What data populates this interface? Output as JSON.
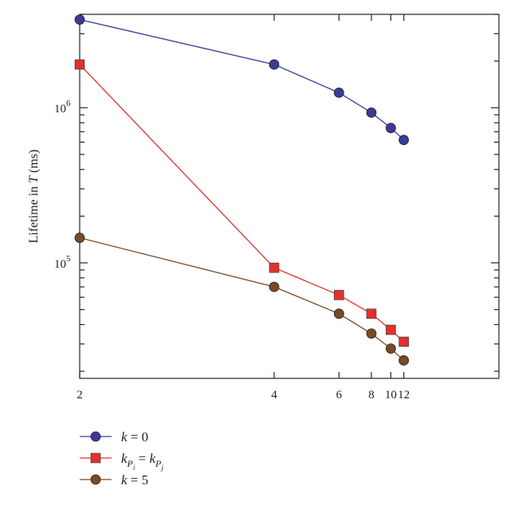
{
  "chart_data": {
    "type": "line",
    "title": "",
    "xlabel": "",
    "ylabel": "Lifetime in T (ms)",
    "ylabel_parts": {
      "text": "Lifetime in ",
      "var": "T",
      "unit": " (ms)"
    },
    "x_scale": "reciprocal",
    "y_scale": "log",
    "xlim": [
      2,
      12
    ],
    "ylim": [
      18000,
      4000000
    ],
    "x_ticks": [
      2,
      4,
      6,
      8,
      10,
      12
    ],
    "x_tick_labels": [
      "2",
      "4",
      "6",
      "8",
      "10",
      "12"
    ],
    "y_tick_labels": [
      {
        "value": 100000,
        "base": "10",
        "exp": "5"
      },
      {
        "value": 1000000,
        "base": "10",
        "exp": "6"
      }
    ],
    "grid": false,
    "legend_position": "bottom-left-below",
    "x": [
      2,
      4,
      6,
      8,
      10,
      12
    ],
    "series": [
      {
        "name": "k = 0",
        "legend": {
          "var": "k",
          "rest": " = 0"
        },
        "marker": "circle",
        "color": "#3b3a98",
        "values": [
          3700000,
          1900000,
          1250000,
          930000,
          740000,
          620000
        ]
      },
      {
        "name": "kPi = kPj",
        "legend": {
          "left": "k",
          "left_sub": "P",
          "left_sub2": "i",
          "eq": " = ",
          "right": "k",
          "right_sub": "P",
          "right_sub2": "j"
        },
        "marker": "square",
        "color": "#e0312e",
        "values": [
          1900000,
          93000,
          62000,
          47000,
          37000,
          31000
        ]
      },
      {
        "name": "k = 5",
        "legend": {
          "var": "k",
          "rest": " = 5"
        },
        "marker": "circle",
        "color": "#7a4a25",
        "values": [
          145000,
          70000,
          47000,
          35000,
          28000,
          23500
        ]
      }
    ]
  }
}
